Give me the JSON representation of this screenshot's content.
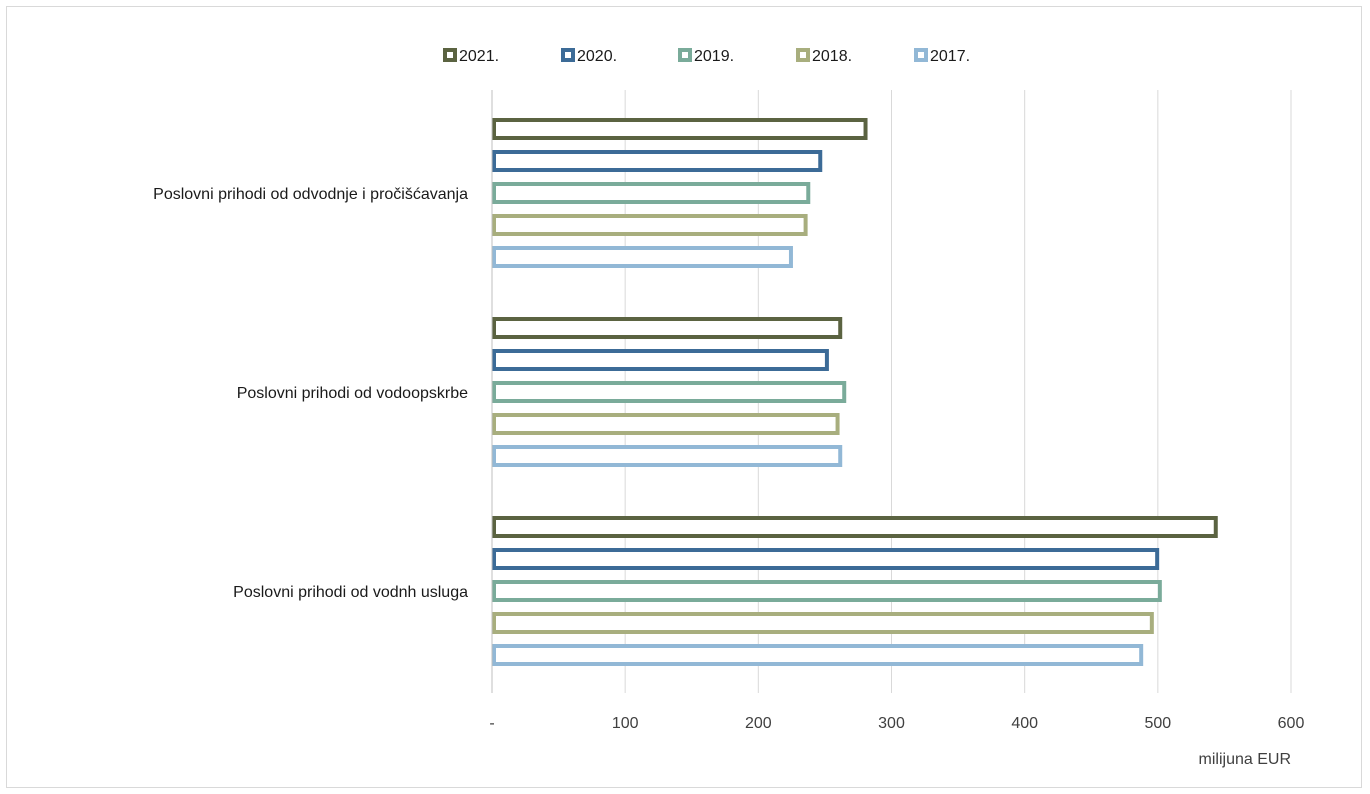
{
  "chart_data": {
    "type": "bar",
    "orientation": "horizontal",
    "title": "",
    "xlabel": "milijuna EUR",
    "ylabel": "",
    "categories": [
      "Poslovni prihodi od odvodnje i pročišćavanja",
      "Poslovni prihodi od vodoopskrbe",
      "Poslovni prihodi od  vodnh usluga"
    ],
    "series": [
      {
        "name": "2021.",
        "color": "#5b6341",
        "values": [
          282,
          263,
          545
        ]
      },
      {
        "name": "2020.",
        "color": "#3c6b97",
        "values": [
          248,
          253,
          501
        ]
      },
      {
        "name": "2019.",
        "color": "#7aab9a",
        "values": [
          239,
          266,
          503
        ]
      },
      {
        "name": "2018.",
        "color": "#a8ae7e",
        "values": [
          237,
          261,
          497
        ]
      },
      {
        "name": "2017.",
        "color": "#92b8d6",
        "values": [
          226,
          263,
          489
        ]
      }
    ],
    "xlim": [
      0,
      600
    ],
    "ticks": [
      0,
      100,
      200,
      300,
      400,
      500,
      600
    ],
    "tick_labels": [
      "-",
      "100",
      "200",
      "300",
      "400",
      "500",
      "600"
    ],
    "grid": true,
    "legend_position": "top",
    "bar_style": "outline"
  }
}
